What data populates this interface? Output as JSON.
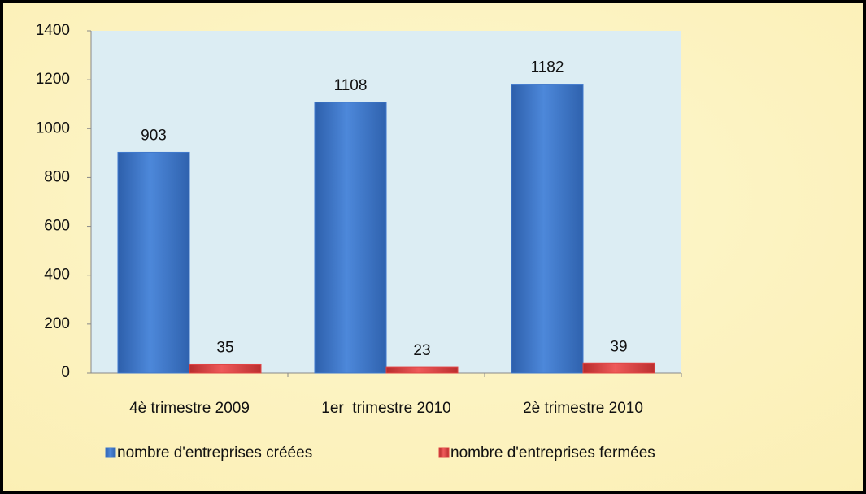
{
  "chart_data": {
    "type": "bar",
    "categories": [
      "4è trimestre 2009",
      "1er  trimestre 2010",
      "2è trimestre 2010"
    ],
    "series": [
      {
        "name": "nombre d'entreprises créées",
        "color": "#3f78cc",
        "values": [
          903,
          1108,
          1182
        ]
      },
      {
        "name": "nombre d'entreprises fermées",
        "color": "#e04545",
        "values": [
          35,
          23,
          39
        ]
      }
    ],
    "ylim": [
      0,
      1400
    ],
    "yticks": [
      0,
      200,
      400,
      600,
      800,
      1000,
      1200,
      1400
    ],
    "legend": "bottom"
  }
}
